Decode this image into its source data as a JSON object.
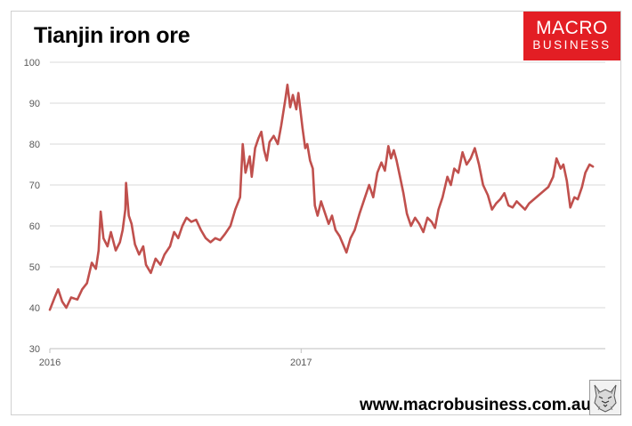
{
  "chart_data": {
    "type": "line",
    "title": "Tianjin iron ore",
    "xlabel": "",
    "ylabel": "",
    "ylim": [
      30,
      100
    ],
    "yticks": [
      30,
      40,
      50,
      60,
      70,
      80,
      90,
      100
    ],
    "xticks": [
      {
        "label": "2016",
        "value": "2016-01-01"
      },
      {
        "label": "2017",
        "value": "2017-01-01"
      }
    ],
    "grid": true,
    "legend": "none",
    "series": [
      {
        "color": "#c0504d",
        "points": [
          [
            "2016-01-01",
            39.5
          ],
          [
            "2016-01-08",
            42.5
          ],
          [
            "2016-01-13",
            44.5
          ],
          [
            "2016-01-19",
            41.5
          ],
          [
            "2016-01-25",
            40.0
          ],
          [
            "2016-02-01",
            42.5
          ],
          [
            "2016-02-10",
            42.0
          ],
          [
            "2016-02-17",
            44.5
          ],
          [
            "2016-02-24",
            46.0
          ],
          [
            "2016-03-02",
            51.0
          ],
          [
            "2016-03-08",
            49.5
          ],
          [
            "2016-03-12",
            54.0
          ],
          [
            "2016-03-15",
            63.5
          ],
          [
            "2016-03-19",
            57.0
          ],
          [
            "2016-03-25",
            55.0
          ],
          [
            "2016-03-30",
            58.5
          ],
          [
            "2016-04-06",
            54.0
          ],
          [
            "2016-04-12",
            56.0
          ],
          [
            "2016-04-16",
            59.0
          ],
          [
            "2016-04-20",
            64.0
          ],
          [
            "2016-04-21",
            70.5
          ],
          [
            "2016-04-25",
            62.5
          ],
          [
            "2016-04-29",
            60.5
          ],
          [
            "2016-05-04",
            55.5
          ],
          [
            "2016-05-10",
            53.0
          ],
          [
            "2016-05-16",
            55.0
          ],
          [
            "2016-05-20",
            50.5
          ],
          [
            "2016-05-27",
            48.5
          ],
          [
            "2016-06-03",
            52.0
          ],
          [
            "2016-06-10",
            50.5
          ],
          [
            "2016-06-16",
            53.0
          ],
          [
            "2016-06-24",
            55.0
          ],
          [
            "2016-06-30",
            58.5
          ],
          [
            "2016-07-06",
            57.0
          ],
          [
            "2016-07-12",
            60.0
          ],
          [
            "2016-07-18",
            62.0
          ],
          [
            "2016-07-25",
            61.0
          ],
          [
            "2016-08-01",
            61.5
          ],
          [
            "2016-08-08",
            59.0
          ],
          [
            "2016-08-15",
            57.0
          ],
          [
            "2016-08-22",
            56.0
          ],
          [
            "2016-08-29",
            57.0
          ],
          [
            "2016-09-05",
            56.5
          ],
          [
            "2016-09-12",
            58.0
          ],
          [
            "2016-09-20",
            60.0
          ],
          [
            "2016-09-27",
            64.0
          ],
          [
            "2016-10-04",
            67.0
          ],
          [
            "2016-10-08",
            80.0
          ],
          [
            "2016-10-12",
            73.0
          ],
          [
            "2016-10-18",
            77.0
          ],
          [
            "2016-10-21",
            72.0
          ],
          [
            "2016-10-26",
            79.0
          ],
          [
            "2016-10-31",
            81.5
          ],
          [
            "2016-11-04",
            83.0
          ],
          [
            "2016-11-08",
            78.5
          ],
          [
            "2016-11-12",
            76.0
          ],
          [
            "2016-11-16",
            80.5
          ],
          [
            "2016-11-22",
            82.0
          ],
          [
            "2016-11-28",
            80.0
          ],
          [
            "2016-12-03",
            84.5
          ],
          [
            "2016-12-09",
            91.0
          ],
          [
            "2016-12-12",
            94.5
          ],
          [
            "2016-12-16",
            89.0
          ],
          [
            "2016-12-20",
            92.0
          ],
          [
            "2016-12-25",
            88.5
          ],
          [
            "2016-12-28",
            92.5
          ],
          [
            "2017-01-03",
            84.0
          ],
          [
            "2017-01-07",
            79.0
          ],
          [
            "2017-01-10",
            80.0
          ],
          [
            "2017-01-14",
            76.0
          ],
          [
            "2017-01-18",
            74.0
          ],
          [
            "2017-01-21",
            65.0
          ],
          [
            "2017-01-25",
            62.5
          ],
          [
            "2017-01-30",
            66.0
          ],
          [
            "2017-02-05",
            63.0
          ],
          [
            "2017-02-10",
            60.5
          ],
          [
            "2017-02-15",
            62.5
          ],
          [
            "2017-02-20",
            59.0
          ],
          [
            "2017-02-26",
            57.5
          ],
          [
            "2017-03-03",
            55.5
          ],
          [
            "2017-03-08",
            53.5
          ],
          [
            "2017-03-14",
            57.0
          ],
          [
            "2017-03-20",
            59.0
          ],
          [
            "2017-03-27",
            63.0
          ],
          [
            "2017-04-03",
            66.5
          ],
          [
            "2017-04-10",
            70.0
          ],
          [
            "2017-04-16",
            67.0
          ],
          [
            "2017-04-22",
            73.0
          ],
          [
            "2017-04-28",
            75.5
          ],
          [
            "2017-05-03",
            73.5
          ],
          [
            "2017-05-08",
            79.5
          ],
          [
            "2017-05-12",
            76.5
          ],
          [
            "2017-05-16",
            78.5
          ],
          [
            "2017-05-20",
            76.0
          ],
          [
            "2017-05-25",
            72.0
          ],
          [
            "2017-05-30",
            68.0
          ],
          [
            "2017-06-04",
            63.0
          ],
          [
            "2017-06-10",
            60.0
          ],
          [
            "2017-06-16",
            62.0
          ],
          [
            "2017-06-22",
            60.5
          ],
          [
            "2017-06-28",
            58.5
          ],
          [
            "2017-07-04",
            62.0
          ],
          [
            "2017-07-10",
            61.0
          ],
          [
            "2017-07-15",
            59.5
          ],
          [
            "2017-07-20",
            64.0
          ],
          [
            "2017-07-26",
            67.0
          ],
          [
            "2017-08-02",
            72.0
          ],
          [
            "2017-08-07",
            70.0
          ],
          [
            "2017-08-12",
            74.0
          ],
          [
            "2017-08-18",
            73.0
          ],
          [
            "2017-08-24",
            78.0
          ],
          [
            "2017-08-30",
            75.0
          ],
          [
            "2017-09-05",
            76.5
          ],
          [
            "2017-09-11",
            79.0
          ],
          [
            "2017-09-17",
            75.0
          ],
          [
            "2017-09-23",
            70.0
          ],
          [
            "2017-09-30",
            67.5
          ],
          [
            "2017-10-06",
            64.0
          ],
          [
            "2017-10-12",
            65.5
          ],
          [
            "2017-10-18",
            66.5
          ],
          [
            "2017-10-24",
            68.0
          ],
          [
            "2017-10-30",
            65.0
          ],
          [
            "2017-11-05",
            64.5
          ],
          [
            "2017-11-11",
            66.0
          ],
          [
            "2017-11-17",
            65.0
          ],
          [
            "2017-11-23",
            64.0
          ],
          [
            "2017-11-29",
            65.5
          ],
          [
            "2017-12-06",
            66.5
          ],
          [
            "2017-12-13",
            67.5
          ],
          [
            "2017-12-20",
            68.5
          ],
          [
            "2017-12-27",
            69.5
          ],
          [
            "2018-01-03",
            72.0
          ],
          [
            "2018-01-08",
            76.5
          ],
          [
            "2018-01-14",
            74.0
          ],
          [
            "2018-01-18",
            75.0
          ],
          [
            "2018-01-23",
            71.0
          ],
          [
            "2018-01-28",
            64.5
          ],
          [
            "2018-02-03",
            67.0
          ],
          [
            "2018-02-08",
            66.5
          ],
          [
            "2018-02-14",
            69.5
          ],
          [
            "2018-02-19",
            73.0
          ],
          [
            "2018-02-25",
            75.0
          ],
          [
            "2018-03-02",
            74.5
          ]
        ]
      }
    ]
  },
  "branding": {
    "logo_line1": "MACRO",
    "logo_line2": "BUSINESS",
    "website": "www.macrobusiness.com.au"
  }
}
